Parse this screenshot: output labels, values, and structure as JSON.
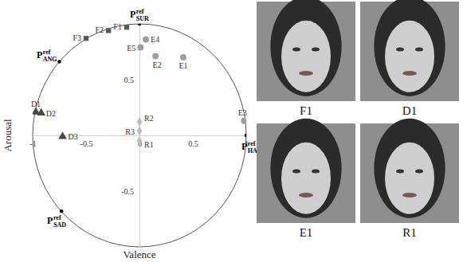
{
  "chart_data": {
    "type": "scatter",
    "x_label": "Valence",
    "y_label": "Arousal",
    "xlim": [
      -1,
      1
    ],
    "ylim": [
      -1,
      1
    ],
    "xticks": [
      -1,
      -0.5,
      0,
      0.5,
      1
    ],
    "yticks": [
      -0.5,
      0.5
    ],
    "grid": false,
    "series": [
      {
        "marker": "square",
        "color": "#5a5a5a",
        "labels": [
          "F1",
          "F2",
          "F3"
        ],
        "x": [
          -0.12,
          -0.29,
          -0.5
        ],
        "y": [
          0.97,
          0.94,
          0.87
        ]
      },
      {
        "marker": "circle",
        "color": "#9e9e9e",
        "labels": [
          "E1",
          "E2",
          "E3",
          "E4",
          "E5"
        ],
        "x": [
          0.41,
          0.15,
          0.98,
          0.06,
          0.01
        ],
        "y": [
          0.7,
          0.71,
          0.13,
          0.86,
          0.79
        ]
      },
      {
        "marker": "triangle",
        "color": "#474747",
        "labels": [
          "D1",
          "D2",
          "D3"
        ],
        "x": [
          -0.97,
          -0.92,
          -0.72
        ],
        "y": [
          0.21,
          0.2,
          -0.01
        ]
      },
      {
        "marker": "diamond",
        "color": "#bdbdbd",
        "labels": [
          "R1",
          "R2",
          "R3"
        ],
        "x": [
          0,
          0,
          0
        ],
        "y": [
          -0.05,
          0.12,
          0.04
        ]
      },
      {
        "marker": "dot",
        "color": "#000000",
        "labels": [
          {
            "base": "P",
            "sup": "ref",
            "sub": "SUR"
          },
          {
            "base": "P",
            "sup": "ref",
            "sub": "ANG"
          },
          {
            "base": "P",
            "sup": "ref",
            "sub": "HAP"
          },
          {
            "base": "P",
            "sup": "ref",
            "sub": "SAD"
          }
        ],
        "x": [
          0,
          -0.75,
          1,
          -0.73
        ],
        "y": [
          1,
          0.66,
          0,
          -0.68
        ]
      }
    ]
  },
  "photos": [
    {
      "caption": "F1"
    },
    {
      "caption": "D1"
    },
    {
      "caption": "E1"
    },
    {
      "caption": "R1"
    }
  ]
}
